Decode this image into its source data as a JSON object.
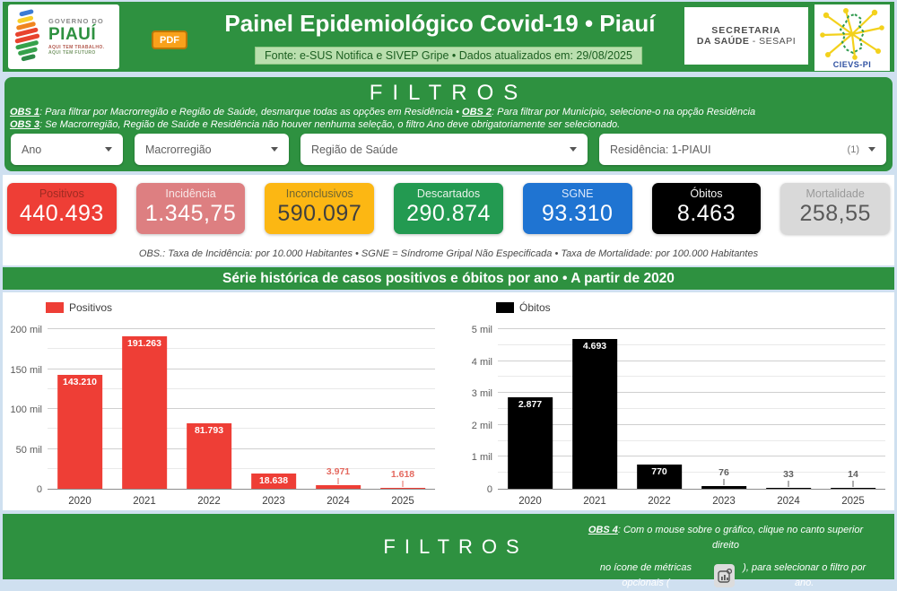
{
  "header": {
    "logo": {
      "line1": "GOVERNO DO",
      "line2": "PIAUÍ",
      "line3": "AQUI TEM TRABALHO.",
      "line4": "AQUI TEM FUTURO"
    },
    "pdf_button": "PDF",
    "title": "Painel Epidemiológico Covid-19 • Piauí",
    "source": "Fonte: e-SUS Notifica e SIVEP Gripe • Dados atualizados em: 29/08/2025",
    "secretaria": {
      "line1": "SECRETARIA",
      "line2_bold": "DA SAÚDE",
      "line2_rest": " - SESAPI"
    },
    "cievs": "CIEVS-PI"
  },
  "filters": {
    "title": "FILTROS",
    "obs1_label": "OBS 1",
    "obs1_text": ": Para filtrar por Macrorregião e Região de Saúde, desmarque todas as opções em Residência • ",
    "obs2_label": "OBS 2",
    "obs2_text": ": Para filtrar por Município, selecione-o na opção Residência",
    "obs3_label": "OBS 3",
    "obs3_text": ": Se Macrorregião, Região de Saúde e Residência não houver nenhuma seleção, o filtro Ano deve obrigatoriamente ser selecionado.",
    "dropdowns": [
      {
        "label": "Ano"
      },
      {
        "label": "Macrorregião"
      },
      {
        "label": "Região de Saúde"
      },
      {
        "label": "Residência: 1-PIAUI",
        "count": "(1)"
      }
    ]
  },
  "kpis": {
    "cards": [
      {
        "label": "Positivos",
        "value": "440.493",
        "bg": "#ee3e36",
        "label_color": "#9e2b22",
        "value_color": "#ffffff"
      },
      {
        "label": "Incidência",
        "value": "1.345,75",
        "bg": "#dd7f81",
        "label_color": "#f7e6e6",
        "value_color": "#ffffff"
      },
      {
        "label": "Inconclusivos",
        "value": "590.097",
        "bg": "#fcb713",
        "label_color": "#6f6530",
        "value_color": "#3f3f3f"
      },
      {
        "label": "Descartados",
        "value": "290.874",
        "bg": "#239a51",
        "label_color": "#e9f2ea",
        "value_color": "#ffffff"
      },
      {
        "label": "SGNE",
        "value": "93.310",
        "bg": "#1f74d2",
        "label_color": "#dce9fb",
        "value_color": "#ffffff"
      },
      {
        "label": "Óbitos",
        "value": "8.463",
        "bg": "#000000",
        "label_color": "#f2f2f2",
        "value_color": "#ffffff"
      },
      {
        "label": "Mortalidade",
        "value": "258,55",
        "bg": "#d9d9d9",
        "label_color": "#9a9a9a",
        "value_color": "#595959"
      }
    ],
    "note": "OBS.: Taxa de Incidência: por 10.000 Habitantes • SGNE = Síndrome Gripal Não Especificada • Taxa de Mortalidade: por 100.000 Habitantes"
  },
  "section_title": "Série histórica de casos positivos e óbitos por ano • A partir de 2020",
  "chart_data": [
    {
      "type": "bar",
      "legend": "Positivos",
      "bar_color": "#ee3e36",
      "categories": [
        "2020",
        "2021",
        "2022",
        "2023",
        "2024",
        "2025"
      ],
      "values": [
        143210,
        191263,
        81793,
        18638,
        3971,
        1618
      ],
      "value_labels": [
        "143.210",
        "191.263",
        "81.793",
        "18.638",
        "3.971",
        "1.618"
      ],
      "label_placement": [
        "inside",
        "inside",
        "inside",
        "inside",
        "above",
        "above"
      ],
      "inside_label_color": "#ffffff",
      "above_label_color": "#e4695f",
      "ylim": [
        0,
        200000
      ],
      "y_ticks": [
        {
          "value": 0,
          "label": "0"
        },
        {
          "value": 50000,
          "label": "50 mil"
        },
        {
          "value": 100000,
          "label": "100 mil"
        },
        {
          "value": 150000,
          "label": "150 mil"
        },
        {
          "value": 200000,
          "label": "200 mil"
        }
      ],
      "minor_ticks": [
        25000,
        75000,
        125000,
        175000
      ],
      "grid": true,
      "legend_position": "top-left"
    },
    {
      "type": "bar",
      "legend": "Óbitos",
      "bar_color": "#000000",
      "categories": [
        "2020",
        "2021",
        "2022",
        "2023",
        "2024",
        "2025"
      ],
      "values": [
        2877,
        4693,
        770,
        76,
        33,
        14
      ],
      "value_labels": [
        "2.877",
        "4.693",
        "770",
        "76",
        "33",
        "14"
      ],
      "label_placement": [
        "inside",
        "inside",
        "inside",
        "above",
        "above",
        "above"
      ],
      "inside_label_color": "#ffffff",
      "above_label_color": "#5f5f5f",
      "ylim": [
        0,
        5000
      ],
      "y_ticks": [
        {
          "value": 0,
          "label": "0"
        },
        {
          "value": 1000,
          "label": "1 mil"
        },
        {
          "value": 2000,
          "label": "2 mil"
        },
        {
          "value": 3000,
          "label": "3 mil"
        },
        {
          "value": 4000,
          "label": "4 mil"
        },
        {
          "value": 5000,
          "label": "5 mil"
        }
      ],
      "minor_ticks": [
        500,
        1500,
        2500,
        3500,
        4500
      ],
      "grid": true,
      "legend_position": "top-left"
    }
  ],
  "footer": {
    "title": "FILTROS",
    "obs4_label": "OBS 4",
    "obs4_line1": ": Com o mouse sobre o gráfico, clique no canto superior direito",
    "obs4_line2_pre": "no ícone de métricas opcionais (",
    "obs4_line2_post": "), para selecionar o filtro por ano."
  }
}
